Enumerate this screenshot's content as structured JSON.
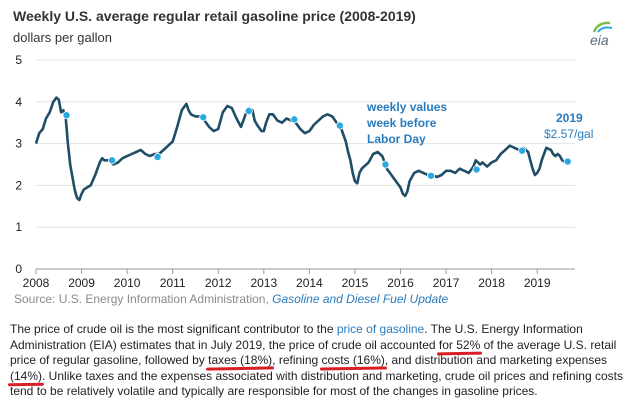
{
  "chart_data": {
    "type": "line",
    "title": "Weekly U.S. average regular retail gasoline price (2008-2019)",
    "ylabel": "dollars per gallon",
    "xlabel": "",
    "ylim": [
      0,
      5
    ],
    "xlim": [
      2008,
      2019.83
    ],
    "x_ticks": [
      "2008",
      "2009",
      "2010",
      "2011",
      "2012",
      "2013",
      "2014",
      "2015",
      "2016",
      "2017",
      "2018",
      "2019"
    ],
    "y_ticks": [
      "0",
      "1",
      "2",
      "3",
      "4",
      "5"
    ],
    "grid": "horizontal",
    "series": [
      {
        "name": "weekly U.S. average regular retail gasoline price",
        "color": "#1f4e66",
        "x": [
          2008.0,
          2008.07,
          2008.15,
          2008.22,
          2008.3,
          2008.38,
          2008.45,
          2008.5,
          2008.55,
          2008.6,
          2008.65,
          2008.7,
          2008.75,
          2008.8,
          2008.85,
          2008.9,
          2008.95,
          2009.0,
          2009.05,
          2009.12,
          2009.2,
          2009.3,
          2009.4,
          2009.45,
          2009.5,
          2009.6,
          2009.7,
          2009.8,
          2009.9,
          2010.0,
          2010.1,
          2010.2,
          2010.3,
          2010.4,
          2010.5,
          2010.6,
          2010.7,
          2010.8,
          2010.9,
          2011.0,
          2011.1,
          2011.2,
          2011.3,
          2011.35,
          2011.4,
          2011.5,
          2011.6,
          2011.7,
          2011.8,
          2011.9,
          2012.0,
          2012.1,
          2012.2,
          2012.3,
          2012.4,
          2012.5,
          2012.6,
          2012.68,
          2012.75,
          2012.8,
          2012.85,
          2012.95,
          2013.0,
          2013.05,
          2013.12,
          2013.2,
          2013.3,
          2013.4,
          2013.5,
          2013.6,
          2013.7,
          2013.8,
          2013.9,
          2014.0,
          2014.1,
          2014.2,
          2014.3,
          2014.4,
          2014.5,
          2014.6,
          2014.7,
          2014.8,
          2014.85,
          2014.9,
          2014.95,
          2015.0,
          2015.05,
          2015.1,
          2015.15,
          2015.2,
          2015.3,
          2015.4,
          2015.5,
          2015.6,
          2015.7,
          2015.8,
          2015.9,
          2016.0,
          2016.05,
          2016.1,
          2016.15,
          2016.2,
          2016.3,
          2016.4,
          2016.5,
          2016.6,
          2016.7,
          2016.8,
          2016.9,
          2017.0,
          2017.1,
          2017.2,
          2017.3,
          2017.4,
          2017.5,
          2017.6,
          2017.65,
          2017.7,
          2017.75,
          2017.8,
          2017.9,
          2018.0,
          2018.1,
          2018.2,
          2018.3,
          2018.4,
          2018.5,
          2018.6,
          2018.7,
          2018.8,
          2018.85,
          2018.9,
          2018.95,
          2019.0,
          2019.05,
          2019.1,
          2019.15,
          2019.2,
          2019.3,
          2019.35,
          2019.4,
          2019.45,
          2019.5,
          2019.55,
          2019.6
        ],
        "values": [
          3.0,
          3.25,
          3.35,
          3.6,
          3.75,
          4.0,
          4.1,
          4.05,
          3.75,
          3.8,
          3.65,
          3.0,
          2.5,
          2.2,
          1.9,
          1.7,
          1.65,
          1.8,
          1.9,
          1.95,
          2.0,
          2.25,
          2.55,
          2.65,
          2.6,
          2.6,
          2.5,
          2.55,
          2.65,
          2.7,
          2.75,
          2.8,
          2.85,
          2.75,
          2.7,
          2.75,
          2.75,
          2.85,
          2.95,
          3.05,
          3.4,
          3.8,
          3.95,
          3.8,
          3.7,
          3.65,
          3.65,
          3.55,
          3.4,
          3.3,
          3.35,
          3.75,
          3.9,
          3.85,
          3.6,
          3.4,
          3.7,
          3.85,
          3.8,
          3.55,
          3.45,
          3.3,
          3.3,
          3.5,
          3.7,
          3.7,
          3.55,
          3.5,
          3.6,
          3.55,
          3.5,
          3.35,
          3.25,
          3.3,
          3.45,
          3.55,
          3.65,
          3.7,
          3.65,
          3.5,
          3.35,
          3.05,
          2.8,
          2.6,
          2.3,
          2.1,
          2.05,
          2.3,
          2.4,
          2.45,
          2.55,
          2.75,
          2.8,
          2.7,
          2.4,
          2.25,
          2.1,
          1.95,
          1.8,
          1.75,
          1.85,
          2.1,
          2.3,
          2.35,
          2.3,
          2.25,
          2.25,
          2.2,
          2.25,
          2.35,
          2.35,
          2.3,
          2.4,
          2.35,
          2.3,
          2.45,
          2.6,
          2.55,
          2.5,
          2.55,
          2.45,
          2.55,
          2.6,
          2.75,
          2.85,
          2.95,
          2.9,
          2.85,
          2.9,
          2.8,
          2.6,
          2.4,
          2.25,
          2.3,
          2.4,
          2.6,
          2.75,
          2.9,
          2.85,
          2.75,
          2.7,
          2.75,
          2.7,
          2.6,
          2.57
        ]
      }
    ],
    "markers": {
      "name": "week before Labor Day",
      "color": "#29a9e1",
      "x": [
        2008.67,
        2009.67,
        2010.67,
        2011.67,
        2012.67,
        2013.67,
        2014.67,
        2015.67,
        2016.67,
        2017.67,
        2018.67,
        2019.67
      ],
      "values": [
        3.68,
        2.6,
        2.68,
        3.63,
        3.78,
        3.58,
        3.43,
        2.5,
        2.23,
        2.38,
        2.83,
        2.57
      ]
    },
    "annotations": {
      "legend_line1": "weekly values",
      "legend_line2": "week before",
      "legend_line3": "Labor Day",
      "year_label": "2019",
      "value_label": "$2.57/gal"
    }
  },
  "header": {
    "title": "Weekly U.S. average regular retail gasoline price (2008-2019)",
    "unit": "dollars per gallon",
    "logo_text": "eia"
  },
  "source": {
    "prefix": "Source:",
    "text": " U.S. Energy Information Administration, ",
    "link": "Gasoline and Diesel Fuel Update"
  },
  "description": {
    "p1": "The price of crude oil is the most significant contributor to the ",
    "link1": "price of gasoline",
    "p2": ". The U.S. Energy Information Administration (EIA) estimates that in July 2019, the price of crude oil accounted ",
    "u1": "for 52%",
    "p3": " of the average U.S. retail price of regular gasoline, followed by ",
    "u2": "taxes (18%)",
    "p4": ", refining ",
    "u3": "costs (16%)",
    "p5": ", and distribution and marketing expenses ",
    "u4": "(14%)",
    "p6": ". Unlike taxes and the expenses associated with distribution and marketing, crude oil prices and refining costs tend to be relatively volatile and typically are responsible for most of the changes in gasoline prices."
  },
  "colors": {
    "line": "#1f4e66",
    "marker": "#29a9e1",
    "annotation": "#2a7bbd",
    "underline": "#d81f26"
  }
}
